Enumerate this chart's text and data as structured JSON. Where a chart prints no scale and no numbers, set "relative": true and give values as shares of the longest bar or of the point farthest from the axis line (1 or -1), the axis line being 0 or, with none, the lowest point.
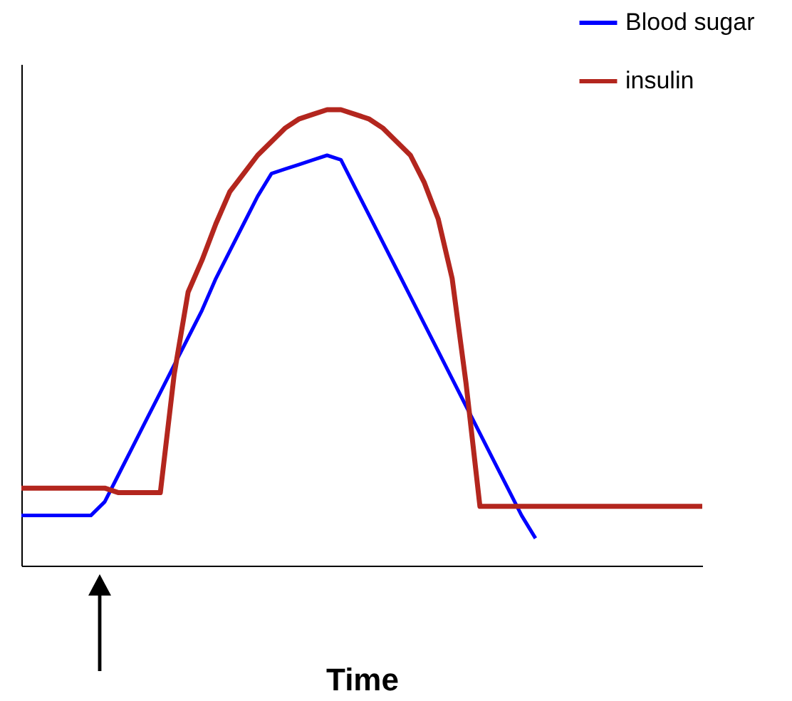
{
  "chart_data": {
    "type": "line",
    "xlabel": "Time",
    "relative": true,
    "legend": "top right",
    "categories": [
      null,
      null,
      null,
      null,
      null,
      null,
      null,
      null,
      null,
      null,
      null,
      null,
      null,
      null,
      null,
      null,
      null,
      null,
      null,
      null,
      null,
      null,
      null,
      null,
      null,
      null,
      null,
      null,
      null,
      null,
      null,
      null,
      null,
      null,
      null,
      null,
      null,
      null,
      null,
      null,
      null,
      null,
      null,
      null,
      null,
      null,
      null,
      null,
      null,
      null
    ],
    "series": [
      {
        "name": "Blood sugar",
        "color": "#0000ff",
        "values": [
          0.11,
          0.11,
          0.11,
          0.11,
          0.11,
          0.11,
          0.14,
          0.2,
          0.26,
          0.32,
          0.38,
          0.44,
          0.5,
          0.56,
          0.63,
          0.69,
          0.75,
          0.81,
          0.86,
          0.87,
          0.88,
          0.89,
          0.9,
          0.89,
          0.83,
          0.77,
          0.71,
          0.65,
          0.59,
          0.53,
          0.47,
          0.41,
          0.35,
          0.29,
          0.23,
          0.17,
          0.11,
          0.06,
          null,
          null,
          null,
          null,
          null,
          null,
          null,
          null,
          null,
          null,
          null,
          null
        ]
      },
      {
        "name": "insulin",
        "color": "#b3261e",
        "values": [
          0.17,
          0.17,
          0.17,
          0.17,
          0.17,
          0.17,
          0.17,
          0.16,
          0.16,
          0.16,
          0.16,
          0.42,
          0.6,
          0.67,
          0.75,
          0.82,
          0.86,
          0.9,
          0.93,
          0.96,
          0.98,
          0.99,
          1,
          1,
          0.99,
          0.98,
          0.96,
          0.93,
          0.9,
          0.84,
          0.76,
          0.63,
          0.4,
          0.13,
          0.13,
          0.13,
          0.13,
          0.13,
          0.13,
          0.13,
          0.13,
          0.13,
          0.13,
          0.13,
          0.13,
          0.13,
          0.13,
          0.13,
          0.13,
          0.13
        ]
      }
    ]
  }
}
